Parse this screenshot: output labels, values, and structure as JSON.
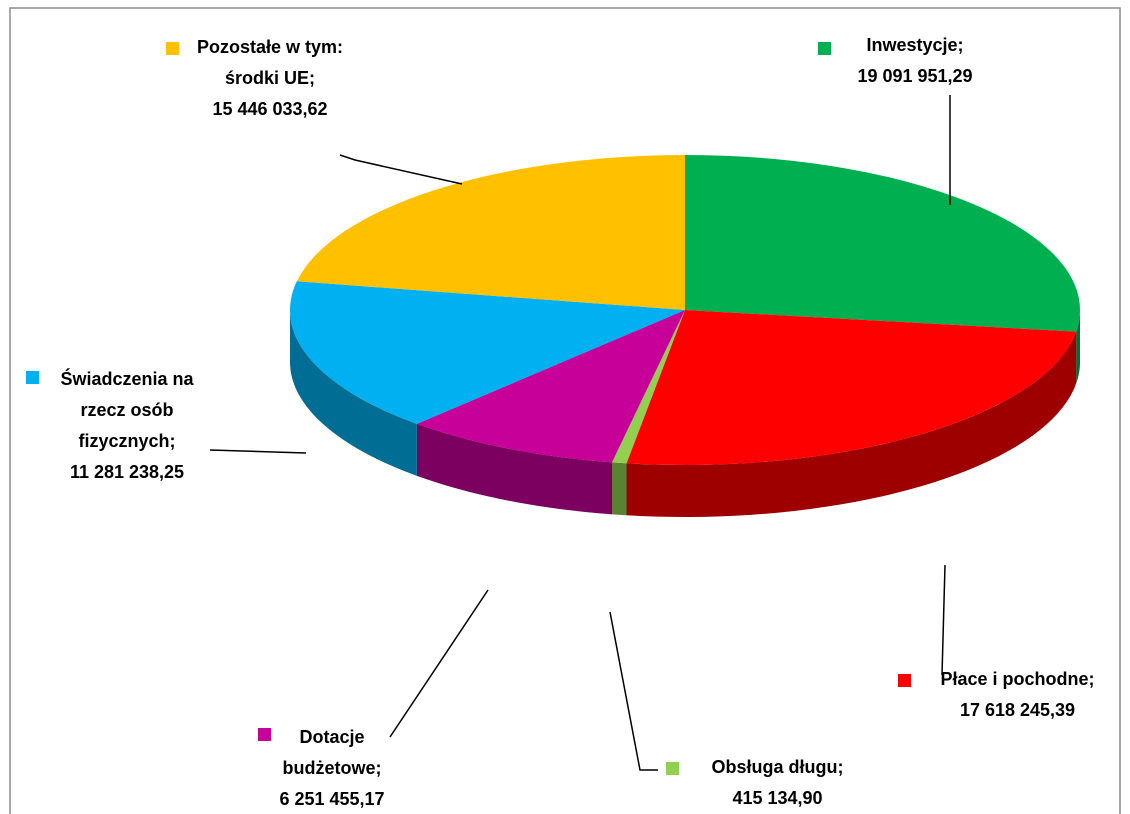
{
  "chart_data": {
    "type": "pie",
    "categories": [
      "Inwestycje;",
      "Płace i pochodne;",
      "Obsługa długu;",
      "Dotacje budżetowe;",
      "Świadczenia na rzecz osób fizycznych;",
      "Pozostałe w tym: środki UE;"
    ],
    "values": [
      19091951.29,
      17618245.39,
      415134.9,
      6251455.17,
      11281238.25,
      15446033.62
    ],
    "value_labels": [
      "19 091 951,29",
      "17 618 245,39",
      "415 134,90",
      "6 251 455,17",
      "11 281 238,25",
      "15 446 033,62"
    ],
    "colors": [
      "#00b050",
      "#ff0000",
      "#92d050",
      "#c8009a",
      "#00b0f0",
      "#ffc000"
    ]
  }
}
